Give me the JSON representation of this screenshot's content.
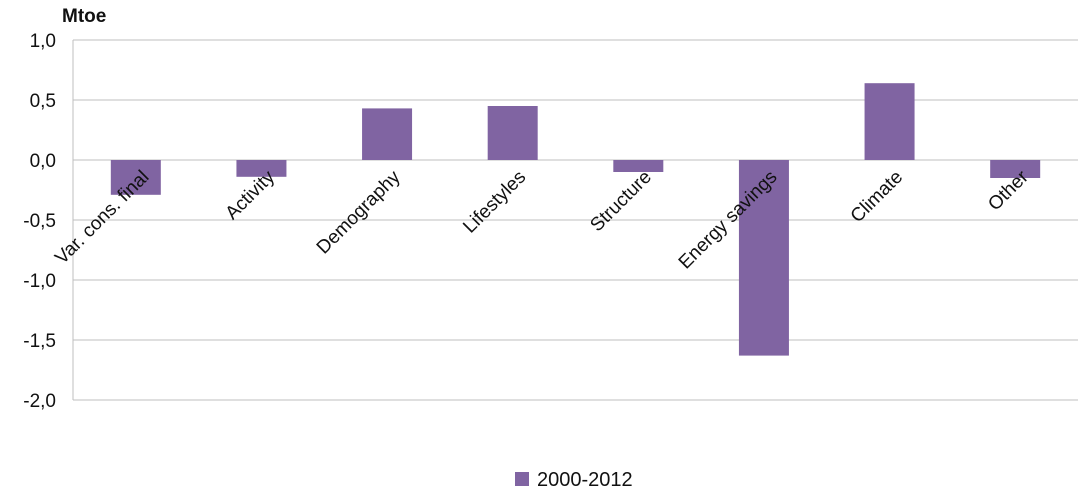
{
  "chart_data": {
    "type": "bar",
    "unit_label": "Mtoe",
    "categories": [
      "Var. cons. final",
      "Activity",
      "Demography",
      "Lifestyles",
      "Structure",
      "Energy savings",
      "Climate",
      "Other"
    ],
    "series": [
      {
        "name": "2000-2012",
        "values": [
          -0.29,
          -0.14,
          0.43,
          0.45,
          -0.1,
          -1.63,
          0.64,
          -0.15
        ],
        "color": "#8064A2"
      }
    ],
    "ylim": [
      -2.0,
      1.0
    ],
    "yticks": [
      1.0,
      0.5,
      0.0,
      -0.5,
      -1.0,
      -1.5,
      -2.0
    ],
    "ytick_labels": [
      "1,0",
      "0,5",
      "0,0",
      "-0,5",
      "-1,0",
      "-1,5",
      "-2,0"
    ],
    "grid": true,
    "legend_position": "bottom-center"
  }
}
